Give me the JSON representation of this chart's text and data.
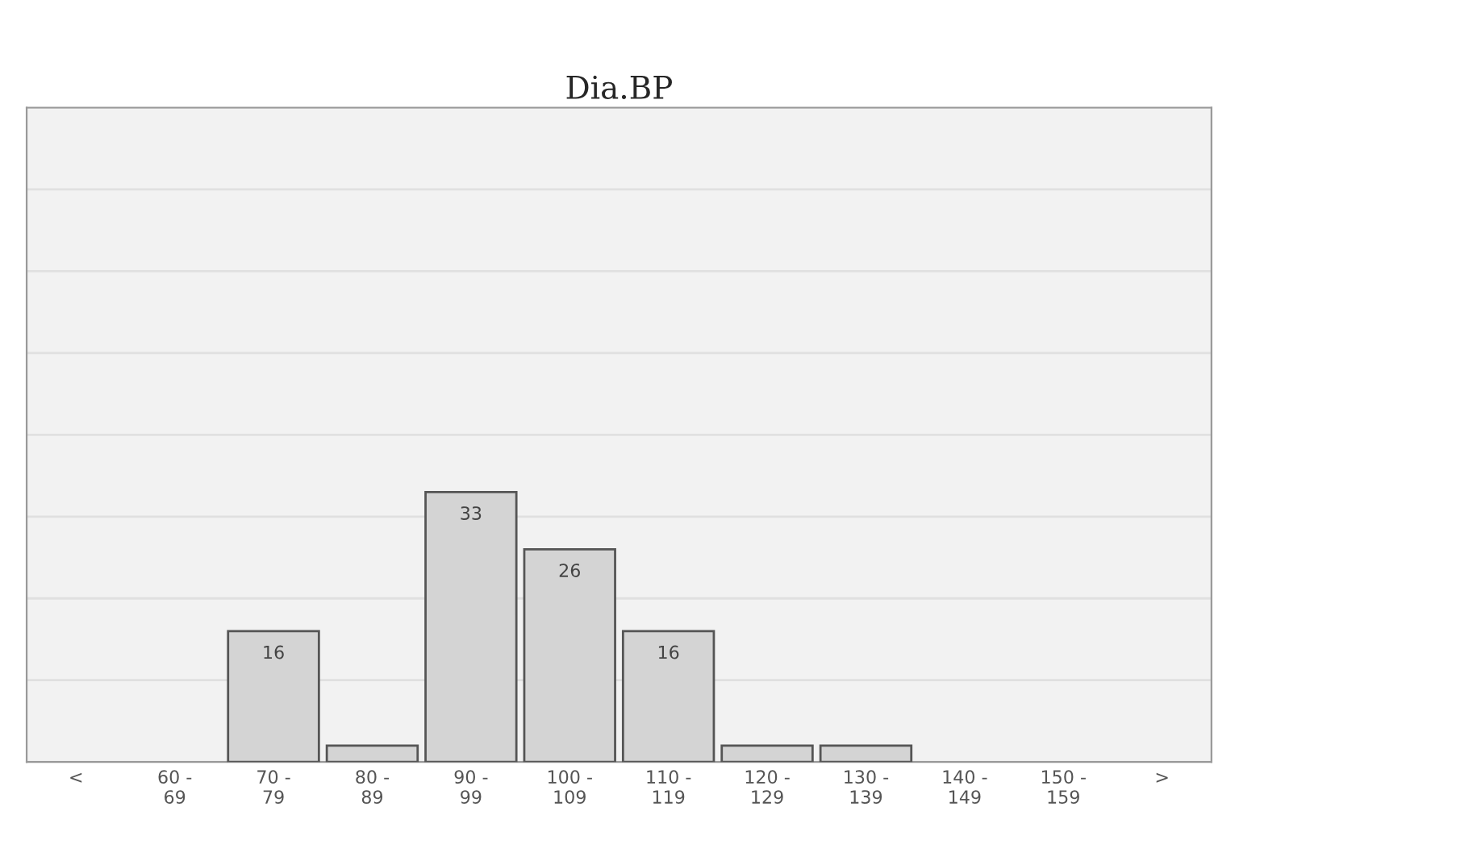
{
  "chart_data": {
    "type": "bar",
    "title": "Dia.BP",
    "categories": [
      "<",
      "60 -\n69",
      "70 -\n79",
      "80 -\n89",
      "90 -\n99",
      "100 -\n109",
      "110 -\n119",
      "120 -\n129",
      "130 -\n139",
      "140 -\n149",
      "150 -\n159",
      ">"
    ],
    "values": [
      0,
      0,
      16,
      2,
      33,
      26,
      16,
      2,
      2,
      0,
      0,
      0
    ],
    "value_labels": [
      null,
      null,
      "16",
      null,
      "33",
      "26",
      "16",
      null,
      null,
      null,
      null,
      null
    ],
    "color": "#d4d4d4",
    "ylim": [
      0,
      80
    ],
    "yticks": [
      {
        "value": 0,
        "label": null
      },
      {
        "value": 10,
        "label": null
      },
      {
        "value": 20,
        "label": null
      },
      {
        "value": 30,
        "label": null
      },
      {
        "value": 40,
        "label": null
      },
      {
        "value": 50,
        "label": null
      },
      {
        "value": 60,
        "label": null
      },
      {
        "value": 70,
        "label": null
      },
      {
        "value": 80,
        "label": null
      }
    ],
    "grid": "y",
    "tick_labels": "x"
  }
}
